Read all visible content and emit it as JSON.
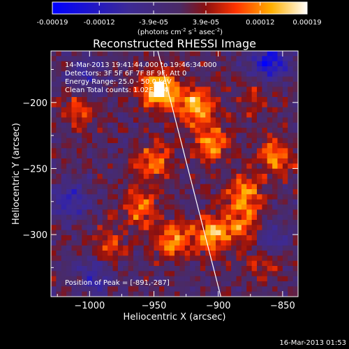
{
  "colorbar": {
    "ticks": [
      "-0.00019",
      "-0.00012",
      "-3.9e-05",
      "3.9e-05",
      "0.00012",
      "0.00019"
    ],
    "tick_values": [
      -0.00019,
      -0.00012,
      -3.9e-05,
      3.9e-05,
      0.00012,
      0.00019
    ],
    "range": [
      -0.00019,
      0.00019
    ],
    "unit_main": "(photons cm",
    "unit_sup1": "-2",
    "unit_mid": " s",
    "unit_sup2": "-1",
    "unit_tail": " asec",
    "unit_sup3": "-2",
    "unit_close": ")"
  },
  "info": {
    "time": "14-Mar-2013 19:41:44.000 to 19:46:34.000",
    "detectors": "Detectors: 3F 5F 6F 7F 8F 9F, Att 0",
    "energy": "Energy Range: 25.0 - 50.0 keV",
    "clean": "Clean    Total counts: 1.02E+04"
  },
  "peak": "Position of Peak = [-891,-287]",
  "footer_date": "16-Mar-2013 01:53",
  "chart_data": {
    "type": "heatmap",
    "title": "Reconstructed RHESSI Image",
    "xlabel": "Heliocentric X (arcsec)",
    "ylabel": "Heliocentric Y (arcsec)",
    "xlim": [
      -1030,
      -838
    ],
    "ylim": [
      -347,
      -161
    ],
    "xticks": [
      -1000,
      -950,
      -900,
      -850
    ],
    "xtick_labels": [
      "−1000",
      "−950",
      "−900",
      "−850"
    ],
    "yticks": [
      -200,
      -250,
      -300
    ],
    "ytick_labels": [
      "−200",
      "−250",
      "−300"
    ],
    "limb_line": [
      [
        -947,
        -161
      ],
      [
        -898,
        -347
      ]
    ],
    "peak_position": [
      -891,
      -287
    ],
    "hot_spots": [
      {
        "x": -946,
        "y": -190,
        "value": 0.00019
      },
      {
        "x": -918,
        "y": -203,
        "value": 0.00015
      },
      {
        "x": -905,
        "y": -230,
        "value": 0.00012
      },
      {
        "x": -950,
        "y": -245,
        "value": 0.00011
      },
      {
        "x": -880,
        "y": -270,
        "value": 0.00013
      },
      {
        "x": -855,
        "y": -240,
        "value": 0.00012
      },
      {
        "x": -960,
        "y": -280,
        "value": 0.00011
      },
      {
        "x": -935,
        "y": -305,
        "value": 0.00012
      },
      {
        "x": -905,
        "y": -300,
        "value": 0.00014
      },
      {
        "x": -880,
        "y": -295,
        "value": 0.0001
      },
      {
        "x": -985,
        "y": -310,
        "value": 9e-05
      },
      {
        "x": -865,
        "y": -320,
        "value": 8e-05
      },
      {
        "x": -1010,
        "y": -205,
        "value": 8e-05
      },
      {
        "x": -870,
        "y": -195,
        "value": 6e-05
      }
    ],
    "cold_spots": [
      {
        "x": -860,
        "y": -170,
        "value": -0.00015
      },
      {
        "x": -1015,
        "y": -275,
        "value": -0.0001
      },
      {
        "x": -995,
        "y": -330,
        "value": -9e-05
      },
      {
        "x": -860,
        "y": -305,
        "value": -0.0001
      },
      {
        "x": -1005,
        "y": -180,
        "value": -7e-05
      }
    ]
  }
}
